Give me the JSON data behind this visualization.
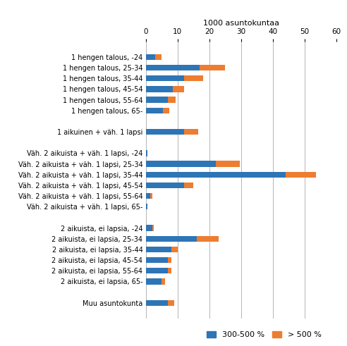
{
  "categories": [
    "1 hengen talous, -24",
    "1 hengen talous, 25-34",
    "1 hengen talous, 35-44",
    "1 hengen talous, 45-54",
    "1 hengen talous, 55-64",
    "1 hengen talous, 65-",
    "",
    "1 aikuinen + väh. 1 lapsi",
    " ",
    "Väh. 2 aikuista + väh. 1 lapsi, -24",
    "Väh. 2 aikuista + väh. 1 lapsi, 25-34",
    "Väh. 2 aikuista + väh. 1 lapsi, 35-44",
    "Väh. 2 aikuista + väh. 1 lapsi, 45-54",
    "Väh. 2 aikuista + väh. 1 lapsi, 55-64",
    "Väh. 2 aikuista + väh. 1 lapsi, 65-",
    "  ",
    "2 aikuista, ei lapsia, -24",
    "2 aikuista, ei lapsia, 25-34",
    "2 aikuista, ei lapsia, 35-44",
    "2 aikuista, ei lapsia, 45-54",
    "2 aikuista, ei lapsia, 55-64",
    "2 aikuista, ei lapsia, 65-",
    "   ",
    "Muu asuntokunta"
  ],
  "values_300_500": [
    3.0,
    17.0,
    12.0,
    8.5,
    7.0,
    5.5,
    0,
    12.0,
    0,
    0.5,
    22.0,
    44.0,
    12.0,
    1.5,
    0.5,
    0,
    2.0,
    16.0,
    8.0,
    7.0,
    7.0,
    5.0,
    0,
    7.0
  ],
  "values_500plus": [
    2.0,
    8.0,
    6.0,
    3.5,
    2.5,
    2.0,
    0,
    4.5,
    0,
    0.0,
    7.5,
    9.5,
    3.0,
    0.5,
    0.0,
    0,
    0.5,
    7.0,
    2.0,
    1.0,
    1.0,
    1.0,
    0,
    2.0
  ],
  "color_300_500": "#2e75b6",
  "color_500plus": "#ed7d31",
  "xlabel": "1000 asuntokuntaa",
  "xlim": [
    0,
    60
  ],
  "xticks": [
    0,
    10,
    20,
    30,
    40,
    50,
    60
  ],
  "legend_300_500": "300-500 %",
  "legend_500plus": "> 500 %",
  "bar_height": 0.55,
  "figsize": [
    4.92,
    4.91
  ],
  "dpi": 100
}
